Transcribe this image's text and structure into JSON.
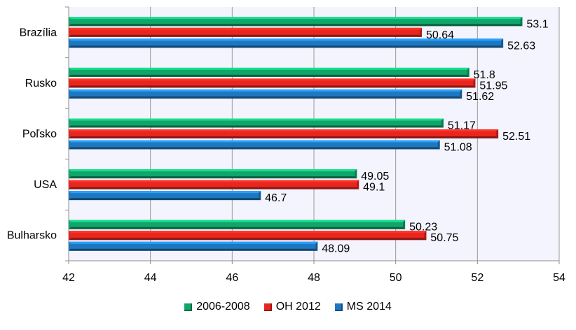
{
  "chart_data": {
    "type": "bar",
    "orientation": "horizontal",
    "categories": [
      "Brazília",
      "Rusko",
      "Poľsko",
      "USA",
      "Bulharsko"
    ],
    "series": [
      {
        "name": "2006-2008",
        "color": "#10A56A",
        "values": [
          53.1,
          51.8,
          51.17,
          49.05,
          50.23
        ]
      },
      {
        "name": "OH 2012",
        "color": "#E8261E",
        "values": [
          50.64,
          51.95,
          52.51,
          49.1,
          50.75
        ]
      },
      {
        "name": "MS 2014",
        "color": "#1E78C0",
        "values": [
          52.63,
          51.62,
          51.08,
          46.7,
          48.09
        ]
      }
    ],
    "xlim": [
      42,
      54
    ],
    "xticks": [
      42,
      44,
      46,
      48,
      50,
      52,
      54
    ],
    "grid": "vertical",
    "legend": "bottom",
    "colors": {
      "plot_background": "#F3F4FE",
      "grid": "#9A9A9A"
    }
  }
}
